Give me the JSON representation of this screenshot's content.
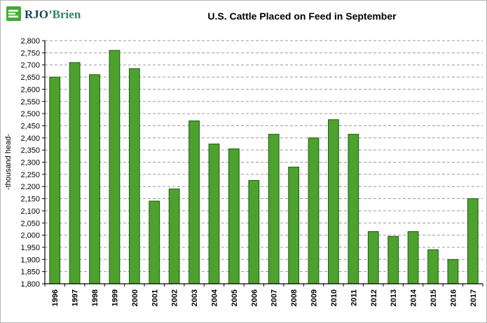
{
  "logo": {
    "text_primary": "RJO",
    "text_secondary": "’Brien",
    "square_color": "#3fae37",
    "primary_color": "#1c4257",
    "secondary_color": "#35836b"
  },
  "chart_data": {
    "type": "bar",
    "title": "U.S. Cattle Placed on Feed in September",
    "xlabel": "",
    "ylabel": "-thousand head-",
    "ylim": [
      1800,
      2800
    ],
    "ytick_step": 50,
    "grid": true,
    "legend": false,
    "bar_fill": "#4ca22c",
    "bar_stroke": "#1f5c14",
    "categories": [
      "1996",
      "1997",
      "1998",
      "1999",
      "2000",
      "2001",
      "2002",
      "2003",
      "2004",
      "2005",
      "2006",
      "2007",
      "2008",
      "2009",
      "2010",
      "2011",
      "2012",
      "2013",
      "2014",
      "2015",
      "2016",
      "2017"
    ],
    "values": [
      2650,
      2710,
      2660,
      2760,
      2685,
      2140,
      2190,
      2470,
      2375,
      2355,
      2225,
      2415,
      2280,
      2400,
      2475,
      2415,
      2015,
      1995,
      2015,
      1940,
      1900,
      2150
    ]
  }
}
